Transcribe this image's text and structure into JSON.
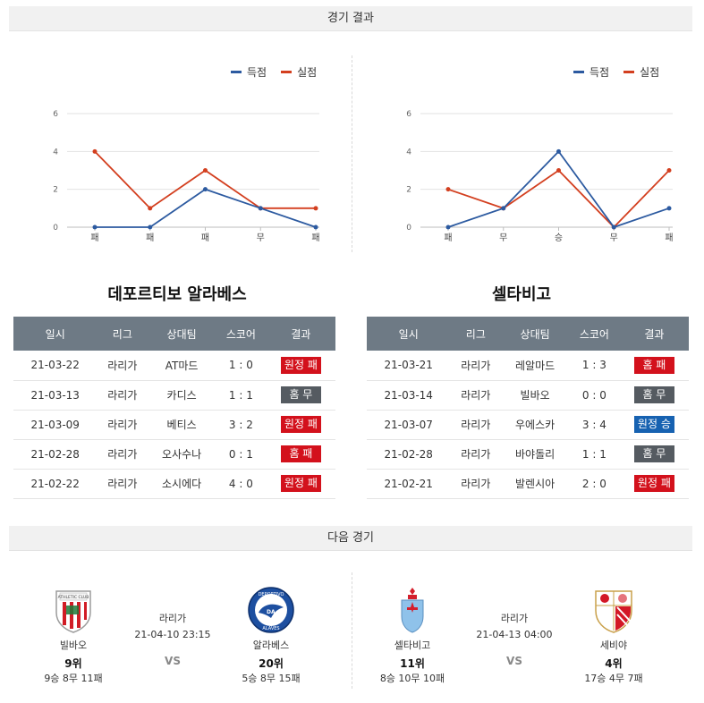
{
  "results_header": "경기 결과",
  "next_header": "다음 경기",
  "legend": {
    "scored": "득점",
    "conceded": "실점",
    "scored_color": "#2c5aa0",
    "conceded_color": "#d33f1f"
  },
  "chart_data": [
    {
      "type": "line",
      "categories": [
        "패",
        "패",
        "패",
        "무",
        "패"
      ],
      "y_ticks": [
        "0",
        "2",
        "4",
        "6"
      ],
      "ylim": [
        0,
        6
      ],
      "grid": true,
      "legend_position": "top-right",
      "series": [
        {
          "name": "득점",
          "values": [
            0,
            0,
            2,
            1,
            0
          ]
        },
        {
          "name": "실점",
          "values": [
            4,
            1,
            3,
            1,
            1
          ]
        }
      ]
    },
    {
      "type": "line",
      "categories": [
        "패",
        "무",
        "승",
        "무",
        "패"
      ],
      "y_ticks": [
        "0",
        "2",
        "4",
        "6"
      ],
      "ylim": [
        0,
        6
      ],
      "grid": true,
      "legend_position": "top-right",
      "series": [
        {
          "name": "득점",
          "values": [
            0,
            1,
            4,
            0,
            1
          ]
        },
        {
          "name": "실점",
          "values": [
            2,
            1,
            3,
            0,
            3
          ]
        }
      ]
    }
  ],
  "columns": [
    "일시",
    "리그",
    "상대팀",
    "스코어",
    "결과"
  ],
  "teams": [
    {
      "name": "데포르티보 알라베스",
      "rows": [
        {
          "date": "21-03-22",
          "league": "라리가",
          "opponent": "AT마드",
          "score": "1 : 0",
          "result": "원정 패",
          "color": "red"
        },
        {
          "date": "21-03-13",
          "league": "라리가",
          "opponent": "카디스",
          "score": "1 : 1",
          "result": "홈 무",
          "color": "gray"
        },
        {
          "date": "21-03-09",
          "league": "라리가",
          "opponent": "베티스",
          "score": "3 : 2",
          "result": "원정 패",
          "color": "red"
        },
        {
          "date": "21-02-28",
          "league": "라리가",
          "opponent": "오사수나",
          "score": "0 : 1",
          "result": "홈 패",
          "color": "red"
        },
        {
          "date": "21-02-22",
          "league": "라리가",
          "opponent": "소시에다",
          "score": "4 : 0",
          "result": "원정 패",
          "color": "red"
        }
      ]
    },
    {
      "name": "셀타비고",
      "rows": [
        {
          "date": "21-03-21",
          "league": "라리가",
          "opponent": "레알마드",
          "score": "1 : 3",
          "result": "홈 패",
          "color": "red"
        },
        {
          "date": "21-03-14",
          "league": "라리가",
          "opponent": "빌바오",
          "score": "0 : 0",
          "result": "홈 무",
          "color": "gray"
        },
        {
          "date": "21-03-07",
          "league": "라리가",
          "opponent": "우에스카",
          "score": "3 : 4",
          "result": "원정 승",
          "color": "blue"
        },
        {
          "date": "21-02-28",
          "league": "라리가",
          "opponent": "바야돌리",
          "score": "1 : 1",
          "result": "홈 무",
          "color": "gray"
        },
        {
          "date": "21-02-21",
          "league": "라리가",
          "opponent": "발렌시아",
          "score": "2 : 0",
          "result": "원정 패",
          "color": "red"
        }
      ]
    }
  ],
  "next_matches": [
    {
      "league": "라리가",
      "datetime": "21-04-10 23:15",
      "vs": "VS",
      "home": {
        "name": "빌바오",
        "rank": "9위",
        "record": "9승 8무 11패",
        "crest": "athletic-club-crest-icon"
      },
      "away": {
        "name": "알라베스",
        "rank": "20위",
        "record": "5승 8무 15패",
        "crest": "deportivo-alaves-crest-icon"
      }
    },
    {
      "league": "라리가",
      "datetime": "21-04-13 04:00",
      "vs": "VS",
      "home": {
        "name": "셀타비고",
        "rank": "11위",
        "record": "8승 10무 10패",
        "crest": "celta-vigo-crest-icon"
      },
      "away": {
        "name": "세비야",
        "rank": "4위",
        "record": "17승 4무 7패",
        "crest": "sevilla-crest-icon"
      }
    }
  ]
}
